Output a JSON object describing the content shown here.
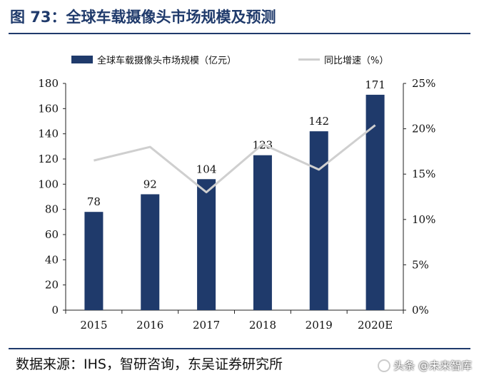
{
  "header": {
    "title": "图 73：全球车载摄像头市场规模及预测"
  },
  "footer": {
    "source": "数据来源：IHS，智研咨询，东吴证券研究所"
  },
  "watermark": {
    "text": "头条 @未来智库"
  },
  "colors": {
    "bar": "#1f3a6b",
    "line": "#cfcfcf",
    "title": "#1f3a6b"
  },
  "chart_data": {
    "type": "bar",
    "categories": [
      "2015",
      "2016",
      "2017",
      "2018",
      "2019",
      "2020E"
    ],
    "series": [
      {
        "name": "全球车载摄像头市场规模（亿元）",
        "type": "bar",
        "axis": "left",
        "values": [
          78,
          92,
          104,
          123,
          142,
          171
        ],
        "labels": [
          "78",
          "92",
          "104",
          "123",
          "142",
          "171"
        ]
      },
      {
        "name": "同比增速（%）",
        "type": "line",
        "axis": "right",
        "values": [
          16.5,
          18.0,
          13.0,
          18.3,
          15.5,
          20.4
        ]
      }
    ],
    "left_axis": {
      "min": 0,
      "max": 180,
      "ticks": [
        "0",
        "20",
        "40",
        "60",
        "80",
        "100",
        "120",
        "140",
        "160",
        "180"
      ]
    },
    "right_axis": {
      "min": 0,
      "max": 25,
      "ticks": [
        "0%",
        "5%",
        "10%",
        "15%",
        "20%",
        "25%"
      ]
    },
    "legend_position": "top",
    "grid": false
  }
}
